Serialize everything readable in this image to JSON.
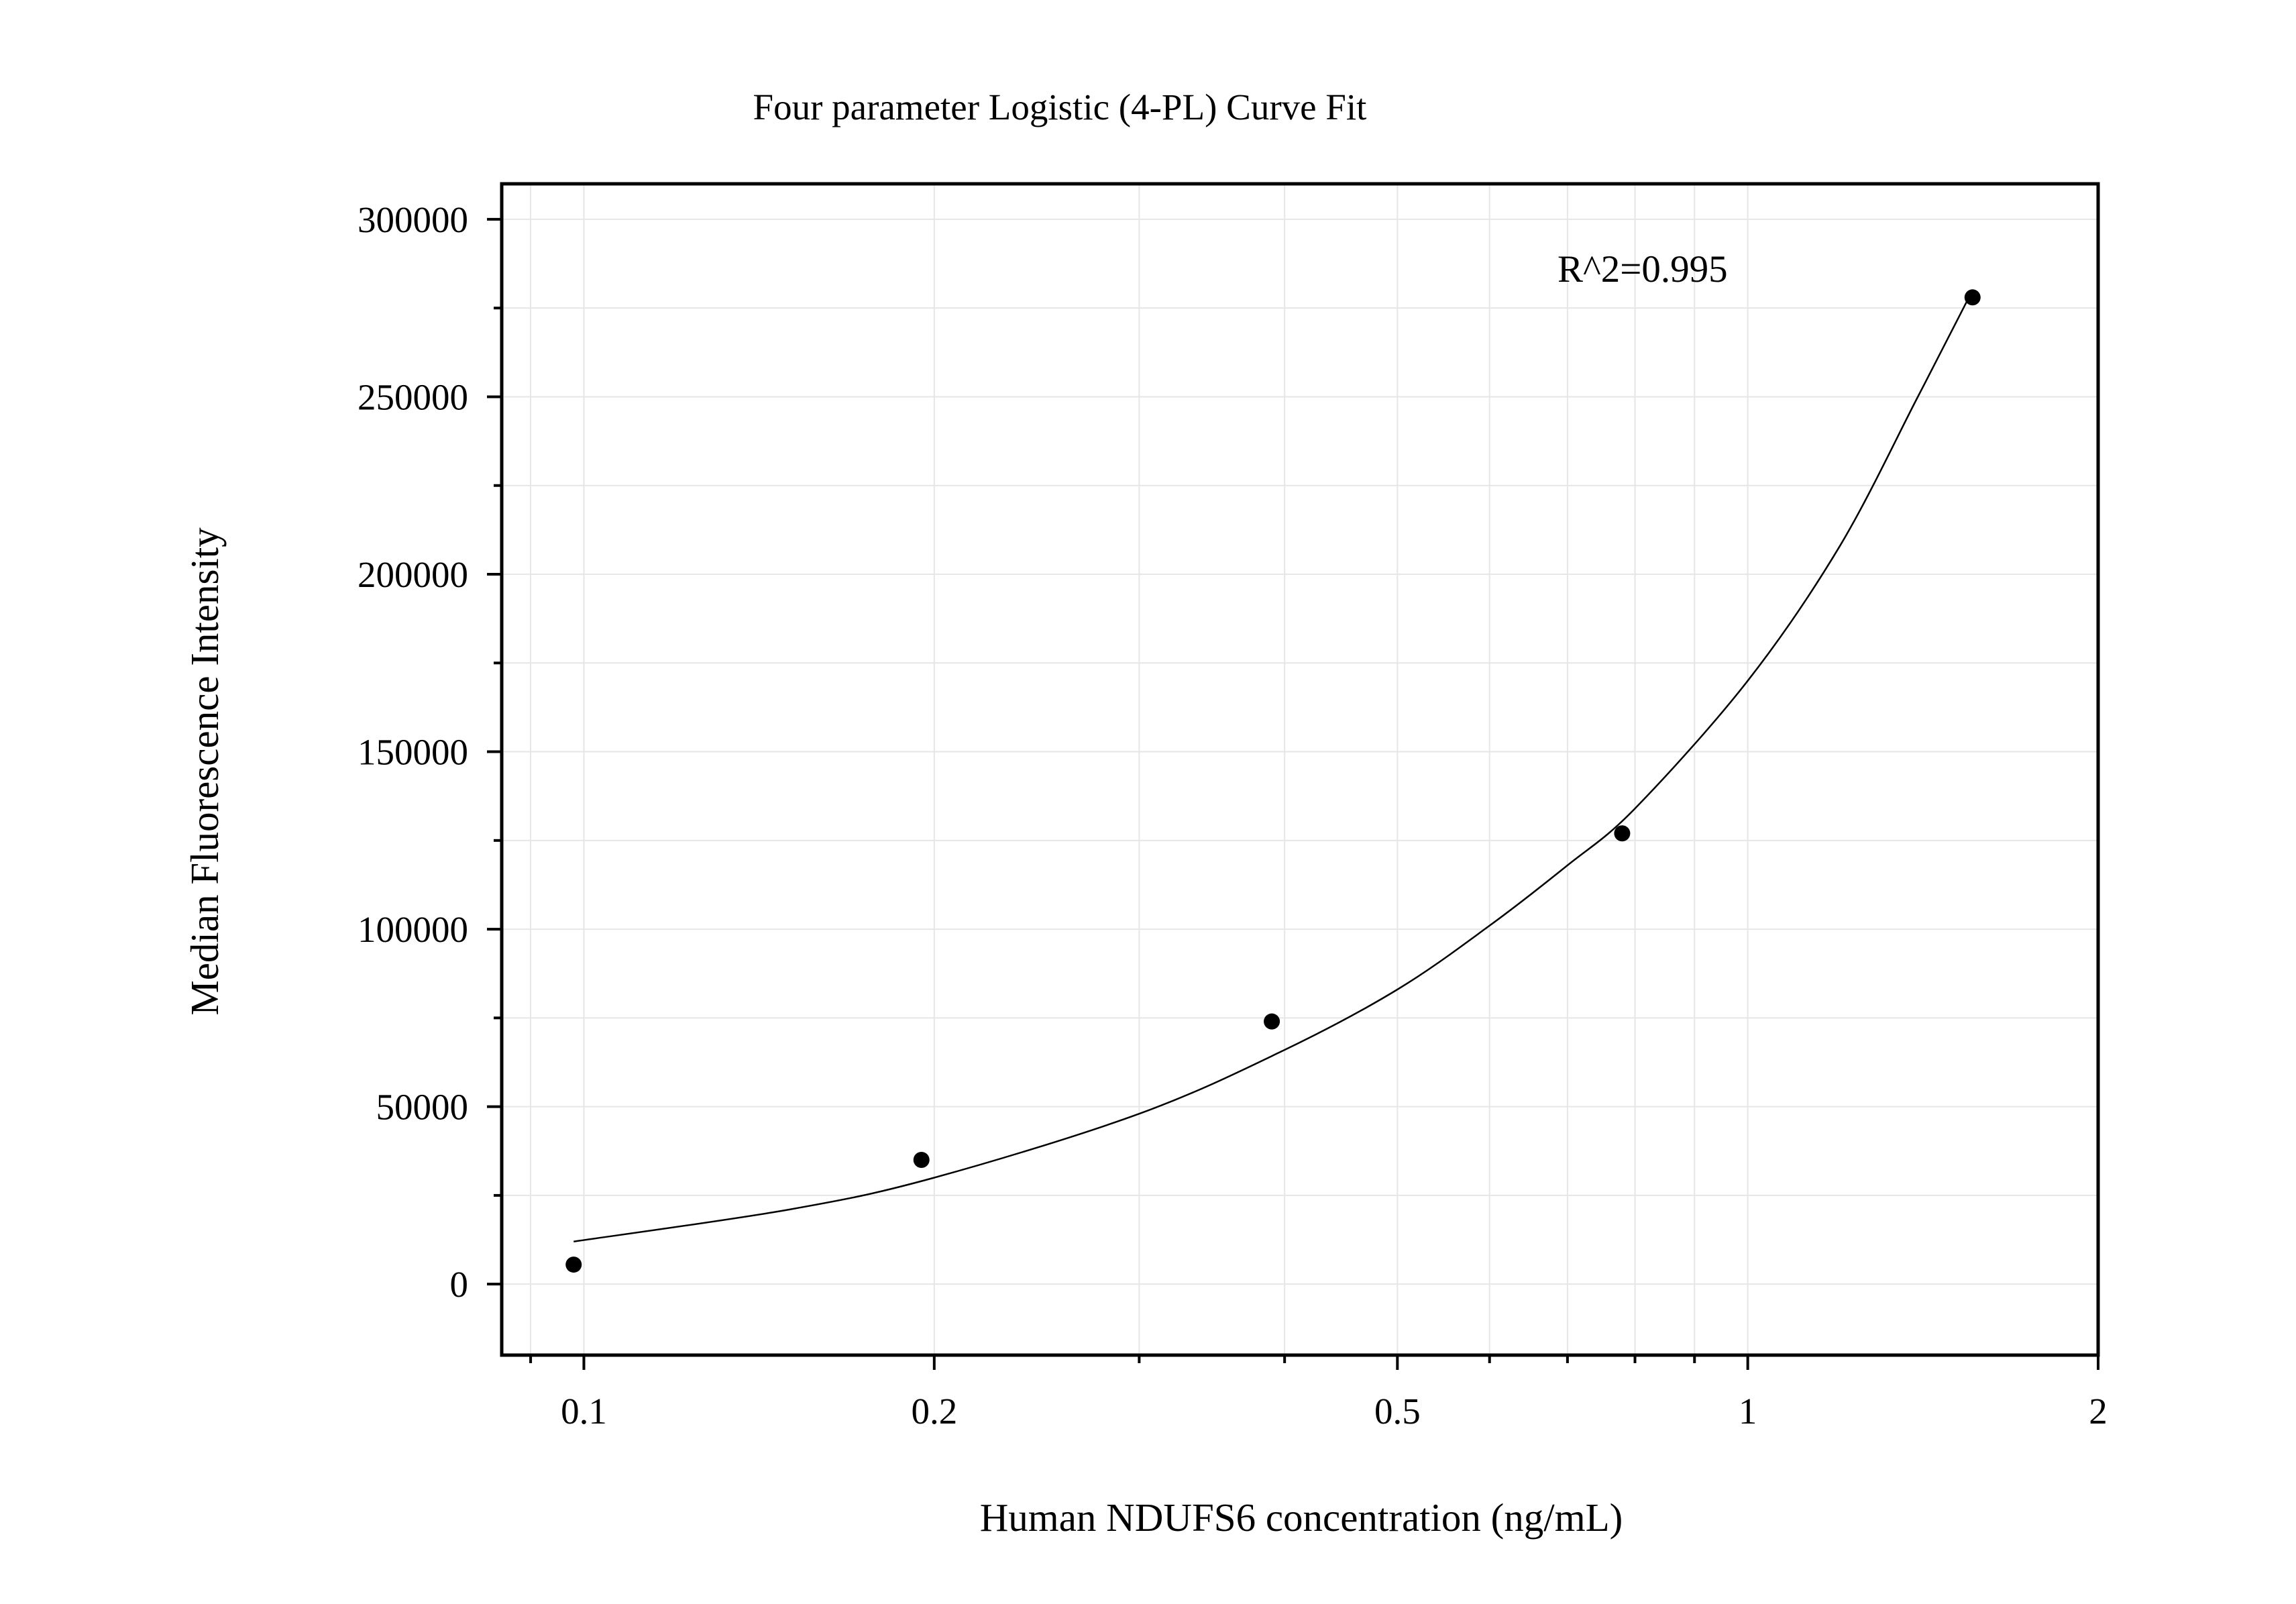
{
  "chart_data": {
    "type": "scatter",
    "title": "Four parameter Logistic (4-PL) Curve Fit",
    "xlabel": "Human NDUFS6 concentration (ng/mL)",
    "ylabel": "Median Fluorescence Intensity",
    "annotation": "R^2=0.995",
    "x_scale": "log",
    "xlim": [
      0.085,
      2
    ],
    "ylim": [
      -20000,
      310000
    ],
    "x_ticks": [
      {
        "value": 0.1,
        "label": "0.1"
      },
      {
        "value": 0.2,
        "label": "0.2"
      },
      {
        "value": 0.5,
        "label": "0.5"
      },
      {
        "value": 1,
        "label": "1"
      },
      {
        "value": 2,
        "label": "2"
      }
    ],
    "y_ticks": [
      {
        "value": 0,
        "label": "0"
      },
      {
        "value": 50000,
        "label": "50000"
      },
      {
        "value": 100000,
        "label": "100000"
      },
      {
        "value": 150000,
        "label": "150000"
      },
      {
        "value": 200000,
        "label": "200000"
      },
      {
        "value": 250000,
        "label": "250000"
      },
      {
        "value": 300000,
        "label": "300000"
      }
    ],
    "grid": true,
    "series": [
      {
        "points": [
          {
            "x": 0.098,
            "y": 5500
          },
          {
            "x": 0.195,
            "y": 35000
          },
          {
            "x": 0.39,
            "y": 74000
          },
          {
            "x": 0.78,
            "y": 127000
          },
          {
            "x": 1.56,
            "y": 278000
          }
        ]
      }
    ],
    "fit_curve": {
      "model": "4PL",
      "x_range": [
        0.098,
        1.56
      ],
      "points": [
        {
          "x": 0.098,
          "y": 12000
        },
        {
          "x": 0.15,
          "y": 21000
        },
        {
          "x": 0.2,
          "y": 30000
        },
        {
          "x": 0.3,
          "y": 48000
        },
        {
          "x": 0.4,
          "y": 66000
        },
        {
          "x": 0.5,
          "y": 83000
        },
        {
          "x": 0.6,
          "y": 101000
        },
        {
          "x": 0.7,
          "y": 118000
        },
        {
          "x": 0.8,
          "y": 134000
        },
        {
          "x": 1.0,
          "y": 170000
        },
        {
          "x": 1.2,
          "y": 208000
        },
        {
          "x": 1.4,
          "y": 250000
        },
        {
          "x": 1.56,
          "y": 280000
        }
      ]
    }
  }
}
